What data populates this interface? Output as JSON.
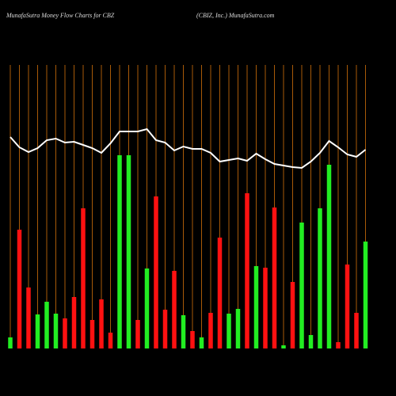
{
  "chart_data": {
    "type": "bar",
    "title": "MunafaSutra  Money Flow  Charts for CBZ",
    "subtitle": "(CBIZ,  Inc.) MunafaSutra.com",
    "categories": [
      null,
      null,
      null,
      null,
      null,
      null,
      null,
      null,
      null,
      null,
      null,
      null,
      null,
      null,
      null,
      null,
      null,
      null,
      null,
      null,
      null,
      null,
      null,
      null,
      null,
      null,
      null,
      null,
      null,
      null,
      null,
      null,
      null,
      null,
      null,
      null,
      null,
      null,
      null,
      null
    ],
    "values": [
      14,
      150,
      77,
      43,
      59,
      44,
      38,
      65,
      177,
      36,
      62,
      20,
      244,
      244,
      36,
      101,
      192,
      49,
      98,
      42,
      22,
      14,
      45,
      140,
      44,
      50,
      196,
      104,
      102,
      178,
      4,
      84,
      159,
      17,
      177,
      232,
      8,
      106,
      45,
      135
    ],
    "colors": [
      "#22ee22",
      "#ff1111",
      "#ff1111",
      "#22ee22",
      "#22ee22",
      "#22ee22",
      "#ff1111",
      "#ff1111",
      "#ff1111",
      "#ff1111",
      "#ff1111",
      "#ff1111",
      "#22ee22",
      "#22ee22",
      "#ff1111",
      "#22ee22",
      "#ff1111",
      "#ff1111",
      "#ff1111",
      "#22ee22",
      "#ff1111",
      "#22ee22",
      "#ff1111",
      "#ff1111",
      "#22ee22",
      "#22ee22",
      "#ff1111",
      "#22ee22",
      "#ff1111",
      "#ff1111",
      "#22ee22",
      "#ff1111",
      "#22ee22",
      "#22ee22",
      "#22ee22",
      "#22ee22",
      "#ff1111",
      "#ff1111",
      "#ff1111",
      "#22ee22"
    ],
    "line": {
      "color": "#ffffff",
      "values": [
        267,
        254,
        248,
        253,
        263,
        265,
        260,
        261,
        257,
        253,
        247,
        259,
        274,
        274,
        274,
        277,
        263,
        260,
        250,
        255,
        252,
        252,
        247,
        236,
        238,
        240,
        237,
        246,
        239,
        233,
        231,
        229,
        228,
        236,
        247,
        262,
        254,
        245,
        242,
        251
      ]
    }
  }
}
